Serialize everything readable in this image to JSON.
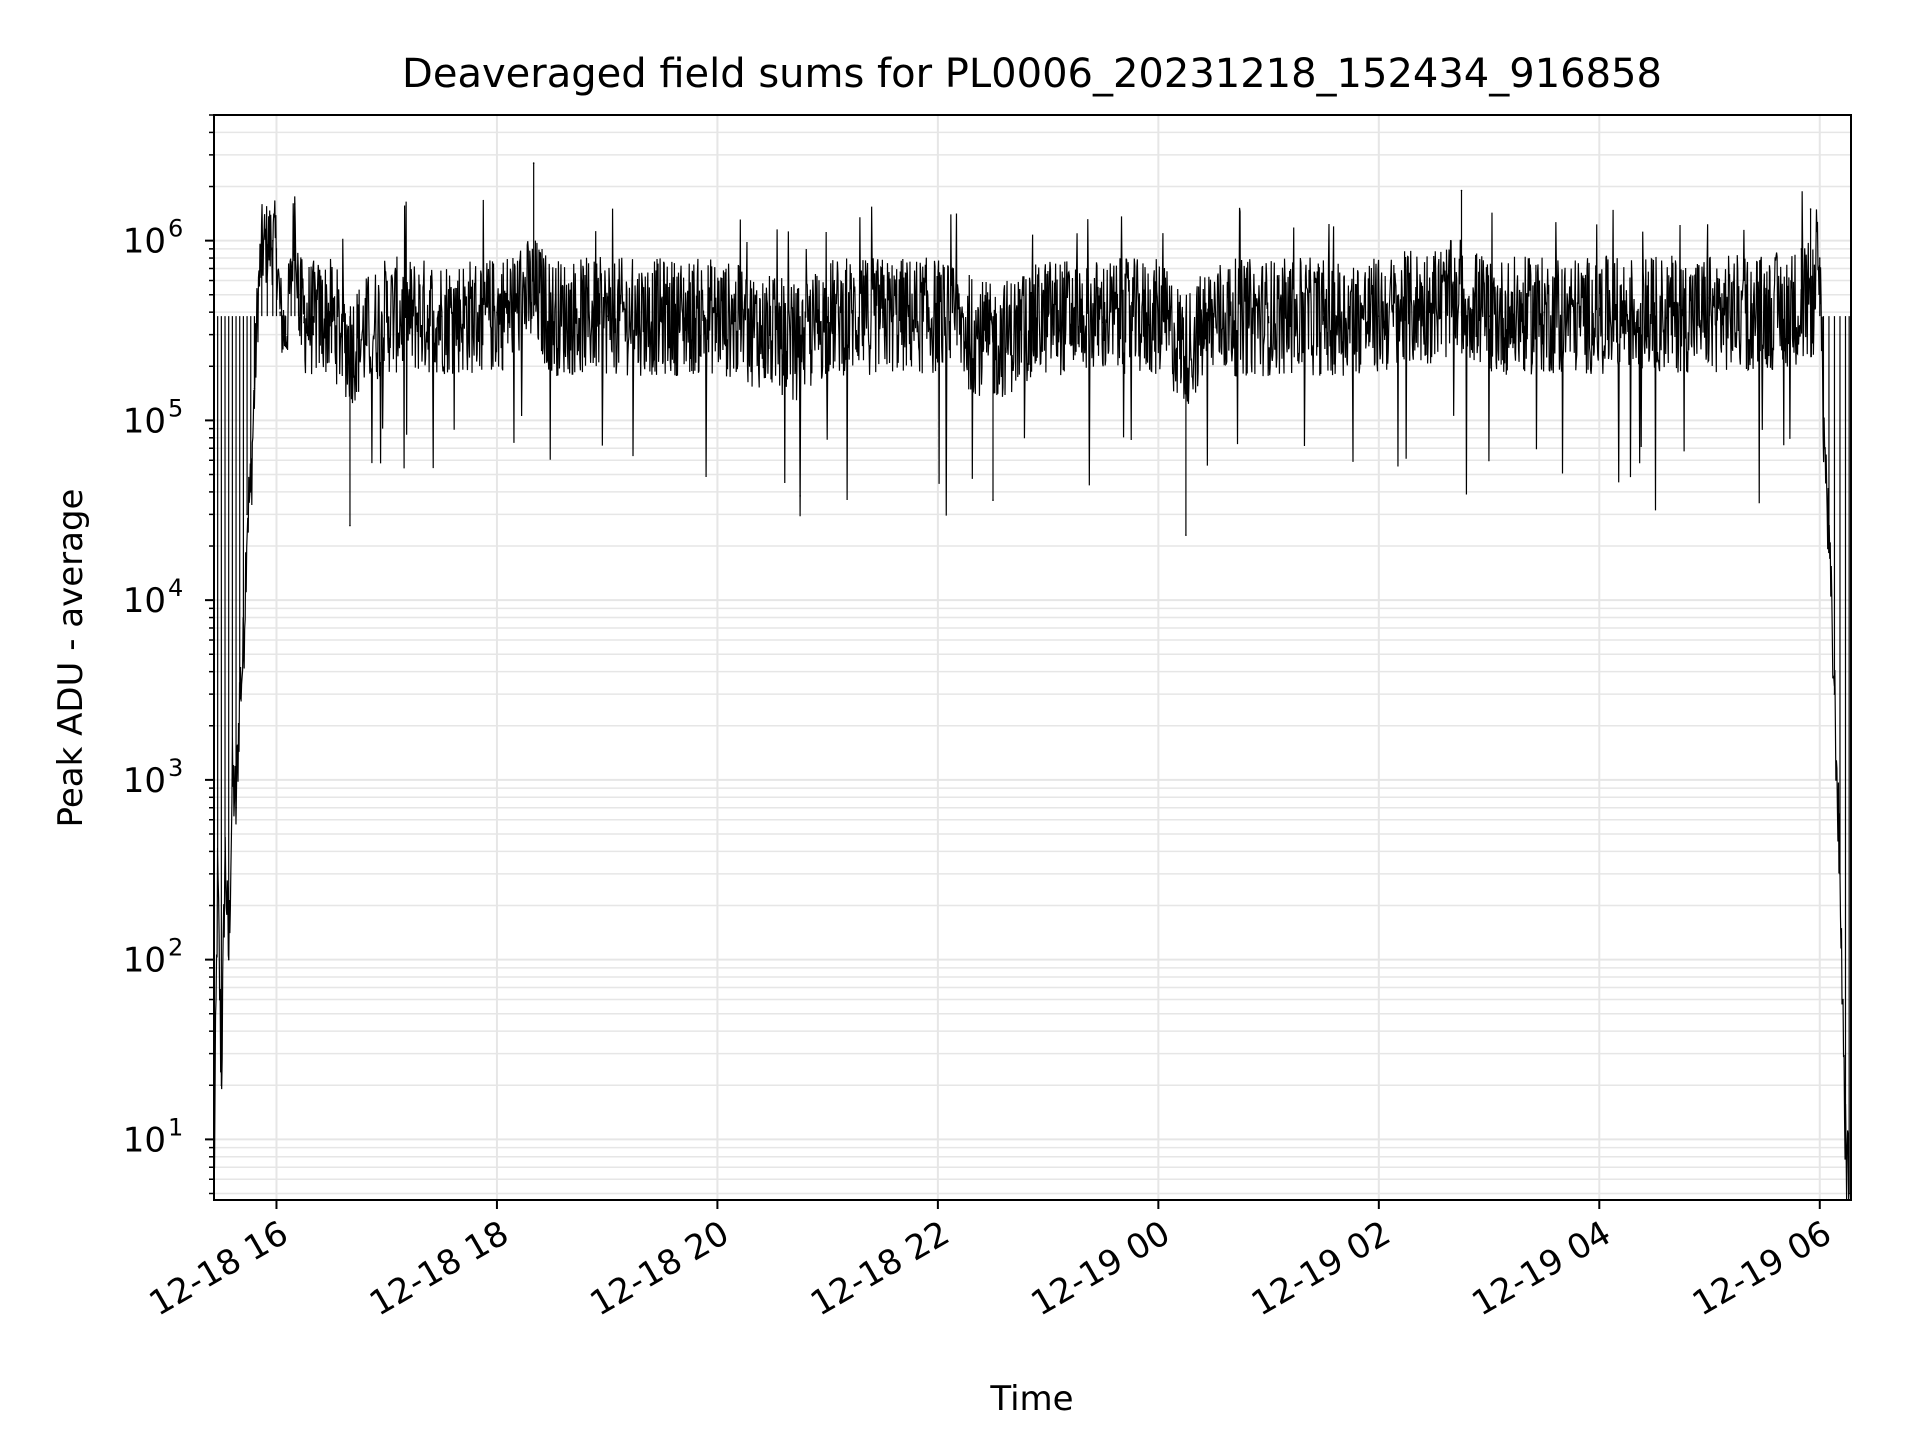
{
  "chart_data": {
    "type": "line",
    "title": "Deaveraged field sums for PL0006_20231218_152434_916858",
    "xlabel": "Time",
    "ylabel": "Peak ADU - average",
    "yscale": "log",
    "xlim": [
      "2023-12-18 15:26",
      "2023-12-19 06:17"
    ],
    "ylim": [
      4.6,
      5000000
    ],
    "grid": true,
    "x_ticks": [
      {
        "t": "2023-12-18 16:00",
        "label": "12-18 16"
      },
      {
        "t": "2023-12-18 18:00",
        "label": "12-18 18"
      },
      {
        "t": "2023-12-18 20:00",
        "label": "12-18 20"
      },
      {
        "t": "2023-12-18 22:00",
        "label": "12-18 22"
      },
      {
        "t": "2023-12-19 00:00",
        "label": "12-19 00"
      },
      {
        "t": "2023-12-19 02:00",
        "label": "12-19 02"
      },
      {
        "t": "2023-12-19 04:00",
        "label": "12-19 04"
      },
      {
        "t": "2023-12-19 06:00",
        "label": "12-19 06"
      }
    ],
    "y_ticks": [
      {
        "value": 10,
        "base": "10",
        "exp": "1"
      },
      {
        "value": 100,
        "base": "10",
        "exp": "2"
      },
      {
        "value": 1000,
        "base": "10",
        "exp": "3"
      },
      {
        "value": 10000,
        "base": "10",
        "exp": "4"
      },
      {
        "value": 100000,
        "base": "10",
        "exp": "5"
      },
      {
        "value": 1000000,
        "base": "10",
        "exp": "6"
      }
    ],
    "line_color": "#000000",
    "grid_color": "#e6e6e6",
    "series": [
      {
        "points": [
          [
            "2023-12-18 15:26",
            5
          ],
          [
            "2023-12-18 15:28",
            300
          ],
          [
            "2023-12-18 15:30",
            20
          ],
          [
            "2023-12-18 15:32",
            400
          ],
          [
            "2023-12-18 15:34",
            100
          ],
          [
            "2023-12-18 15:36",
            1000
          ],
          [
            "2023-12-18 15:38",
            700
          ],
          [
            "2023-12-18 15:40",
            3000
          ],
          [
            "2023-12-18 15:42",
            5000
          ],
          [
            "2023-12-18 15:44",
            30000
          ],
          [
            "2023-12-18 15:46",
            40000
          ],
          [
            "2023-12-18 15:48",
            150000
          ],
          [
            "2023-12-18 15:50",
            500000
          ],
          [
            "2023-12-18 15:52",
            900000
          ],
          [
            "2023-12-18 15:55",
            950000
          ],
          [
            "2023-12-18 15:58",
            1000000
          ],
          [
            "2023-12-18 16:00",
            900000
          ],
          [
            "2023-12-18 16:02",
            400000
          ],
          [
            "2023-12-18 16:05",
            300000
          ],
          [
            "2023-12-18 16:08",
            600000
          ],
          [
            "2023-12-18 16:10",
            1600000
          ],
          [
            "2023-12-18 16:12",
            500000
          ],
          [
            "2023-12-18 16:15",
            350000
          ],
          [
            "2023-12-18 16:20",
            300000
          ],
          [
            "2023-12-18 16:30",
            350000
          ],
          [
            "2023-12-18 16:40",
            26000
          ],
          [
            "2023-12-18 17:00",
            400000
          ],
          [
            "2023-12-18 17:30",
            380000
          ],
          [
            "2023-12-18 18:00",
            400000
          ],
          [
            "2023-12-18 18:20",
            2700000
          ],
          [
            "2023-12-18 18:30",
            350000
          ],
          [
            "2023-12-18 19:00",
            380000
          ],
          [
            "2023-12-18 19:30",
            350000
          ],
          [
            "2023-12-18 20:00",
            380000
          ],
          [
            "2023-12-18 20:45",
            38000
          ],
          [
            "2023-12-18 21:00",
            350000
          ],
          [
            "2023-12-18 21:30",
            400000
          ],
          [
            "2023-12-18 22:00",
            380000
          ],
          [
            "2023-12-18 22:30",
            36000
          ],
          [
            "2023-12-18 23:00",
            380000
          ],
          [
            "2023-12-18 23:30",
            350000
          ],
          [
            "2023-12-19 00:00",
            330000
          ],
          [
            "2023-12-19 00:15",
            23000
          ],
          [
            "2023-12-19 00:30",
            330000
          ],
          [
            "2023-12-19 01:00",
            350000
          ],
          [
            "2023-12-19 01:30",
            360000
          ],
          [
            "2023-12-19 02:00",
            380000
          ],
          [
            "2023-12-19 02:45",
            1900000
          ],
          [
            "2023-12-19 03:00",
            380000
          ],
          [
            "2023-12-19 03:30",
            400000
          ],
          [
            "2023-12-19 04:00",
            420000
          ],
          [
            "2023-12-19 04:30",
            450000
          ],
          [
            "2023-12-19 05:00",
            480000
          ],
          [
            "2023-12-19 05:30",
            500000
          ],
          [
            "2023-12-19 05:50",
            900000
          ],
          [
            "2023-12-19 05:55",
            1500000
          ],
          [
            "2023-12-19 06:00",
            800000
          ],
          [
            "2023-12-19 06:02",
            100000
          ],
          [
            "2023-12-19 06:05",
            20000
          ],
          [
            "2023-12-19 06:08",
            3000
          ],
          [
            "2023-12-19 06:11",
            300
          ],
          [
            "2023-12-19 06:14",
            10
          ],
          [
            "2023-12-19 06:16",
            5
          ]
        ]
      }
    ]
  }
}
